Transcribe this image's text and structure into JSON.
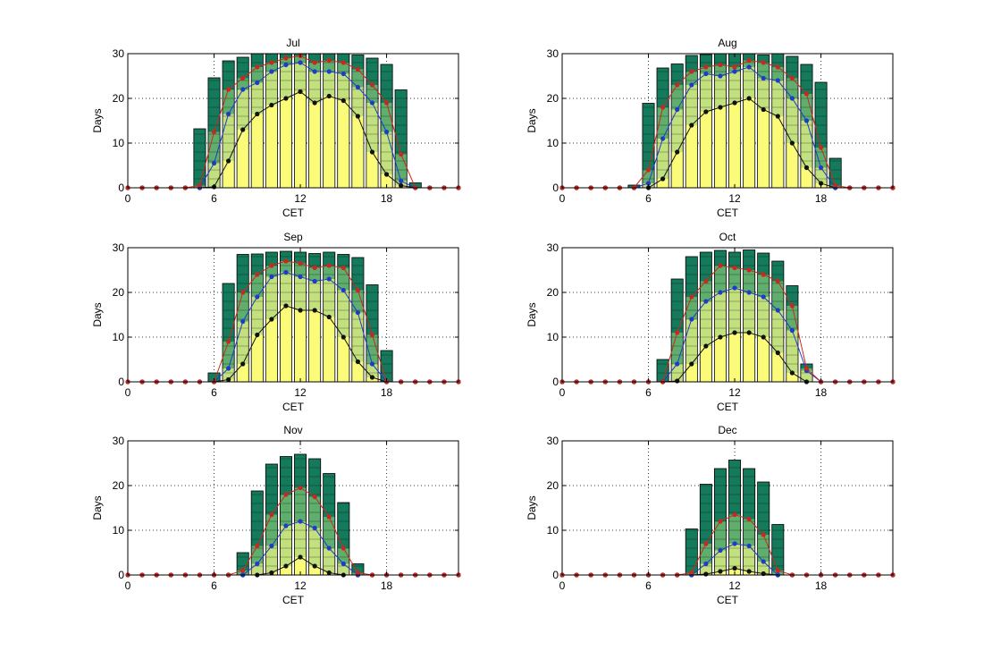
{
  "colors": {
    "bar_dark": "#157a5b",
    "bar_mid": "#5fae6e",
    "bar_light": "#c3e07e",
    "bar_yellow": "#fbfb7a",
    "line_black": "#111111",
    "line_blue": "#1f3cc8",
    "line_red": "#c8291f",
    "grid": "#333333"
  },
  "chart_data": [
    {
      "type": "bar",
      "title": "Jul",
      "xlabel": "CET",
      "ylabel": "Days",
      "xlim": [
        0,
        23
      ],
      "ylim": [
        0,
        30
      ],
      "xticks": [
        0,
        6,
        12,
        18
      ],
      "yticks": [
        0,
        10,
        20,
        30
      ],
      "grid": true,
      "x": [
        0,
        1,
        2,
        3,
        4,
        5,
        6,
        7,
        8,
        9,
        10,
        11,
        12,
        13,
        14,
        15,
        16,
        17,
        18,
        19,
        20,
        21,
        22,
        23
      ],
      "bars": [
        0,
        0,
        0,
        0,
        0,
        13.2,
        24.6,
        28.4,
        29.2,
        30,
        30,
        30,
        30,
        30,
        30,
        30,
        29.7,
        29.0,
        27.6,
        21.9,
        1.1,
        0,
        0,
        0
      ],
      "series": [
        {
          "values": [
            0,
            0,
            0,
            0,
            0,
            0,
            0.2,
            6,
            13,
            16.5,
            18.5,
            20,
            21.5,
            19,
            20.5,
            19.5,
            16,
            8,
            3,
            0.5,
            0,
            0,
            0,
            0
          ]
        },
        {
          "values": [
            0,
            0,
            0,
            0,
            0,
            0,
            5.5,
            16.5,
            22,
            23.5,
            26,
            27.5,
            28,
            26,
            26,
            25.5,
            22.5,
            19,
            12.5,
            1.5,
            0,
            0,
            0,
            0
          ]
        },
        {
          "values": [
            0,
            0,
            0,
            0,
            0,
            0.5,
            12.5,
            22,
            24.5,
            27,
            28,
            29,
            29.5,
            28,
            28.5,
            28,
            26.5,
            23,
            19,
            7.5,
            0,
            0,
            0,
            0
          ]
        }
      ]
    },
    {
      "type": "bar",
      "title": "Aug",
      "xlabel": "CET",
      "ylabel": "Days",
      "xlim": [
        0,
        23
      ],
      "ylim": [
        0,
        30
      ],
      "xticks": [
        0,
        6,
        12,
        18
      ],
      "yticks": [
        0,
        10,
        20,
        30
      ],
      "grid": true,
      "x": [
        0,
        1,
        2,
        3,
        4,
        5,
        6,
        7,
        8,
        9,
        10,
        11,
        12,
        13,
        14,
        15,
        16,
        17,
        18,
        19,
        20,
        21,
        22,
        23
      ],
      "bars": [
        0,
        0,
        0,
        0,
        0,
        0.6,
        18.9,
        26.8,
        27.7,
        29.6,
        29.8,
        30,
        30,
        30,
        29.7,
        30,
        29.4,
        27.6,
        23.6,
        6.6,
        0,
        0,
        0,
        0
      ],
      "series": [
        {
          "values": [
            0,
            0,
            0,
            0,
            0,
            0,
            0,
            2,
            8,
            14,
            17,
            18,
            19,
            20,
            17.5,
            16,
            10,
            4.5,
            1,
            0,
            0,
            0,
            0,
            0
          ]
        },
        {
          "values": [
            0,
            0,
            0,
            0,
            0,
            0,
            1,
            11,
            17.5,
            23,
            25.5,
            25,
            26,
            27,
            24.5,
            24,
            20,
            15,
            4.5,
            0,
            0,
            0,
            0,
            0
          ]
        },
        {
          "values": [
            0,
            0,
            0,
            0,
            0,
            0,
            4,
            18,
            23,
            26,
            27,
            27.5,
            27,
            28.5,
            28,
            27,
            24.5,
            21,
            9,
            0.5,
            0,
            0,
            0,
            0
          ]
        }
      ]
    },
    {
      "type": "bar",
      "title": "Sep",
      "xlabel": "CET",
      "ylabel": "Days",
      "xlim": [
        0,
        23
      ],
      "ylim": [
        0,
        30
      ],
      "xticks": [
        0,
        6,
        12,
        18
      ],
      "yticks": [
        0,
        10,
        20,
        30
      ],
      "grid": true,
      "x": [
        0,
        1,
        2,
        3,
        4,
        5,
        6,
        7,
        8,
        9,
        10,
        11,
        12,
        13,
        14,
        15,
        16,
        17,
        18,
        19,
        20,
        21,
        22,
        23
      ],
      "bars": [
        0,
        0,
        0,
        0,
        0,
        0,
        2,
        22,
        28.5,
        28.6,
        29,
        29.2,
        29,
        28.7,
        29,
        28.5,
        27.8,
        21.7,
        7,
        0,
        0,
        0,
        0,
        0
      ],
      "series": [
        {
          "values": [
            0,
            0,
            0,
            0,
            0,
            0,
            0,
            0.5,
            4,
            10.5,
            14,
            17,
            16,
            16,
            14.5,
            10,
            4.5,
            1,
            0,
            0,
            0,
            0,
            0,
            0
          ]
        },
        {
          "values": [
            0,
            0,
            0,
            0,
            0,
            0,
            0,
            3,
            13.5,
            19,
            23.5,
            24.5,
            23.5,
            22.5,
            23,
            20.5,
            15.5,
            4,
            0,
            0,
            0,
            0,
            0,
            0
          ]
        },
        {
          "values": [
            0,
            0,
            0,
            0,
            0,
            0,
            0,
            9,
            20,
            24,
            26,
            27,
            26.5,
            25.5,
            26,
            25.5,
            20.5,
            10.5,
            0,
            0,
            0,
            0,
            0,
            0
          ]
        }
      ]
    },
    {
      "type": "bar",
      "title": "Oct",
      "xlabel": "CET",
      "ylabel": "Days",
      "xlim": [
        0,
        23
      ],
      "ylim": [
        0,
        30
      ],
      "xticks": [
        0,
        6,
        12,
        18
      ],
      "yticks": [
        0,
        10,
        20,
        30
      ],
      "grid": true,
      "x": [
        0,
        1,
        2,
        3,
        4,
        5,
        6,
        7,
        8,
        9,
        10,
        11,
        12,
        13,
        14,
        15,
        16,
        17,
        18,
        19,
        20,
        21,
        22,
        23
      ],
      "bars": [
        0,
        0,
        0,
        0,
        0,
        0,
        0,
        5,
        23,
        28,
        29,
        29.4,
        29,
        29.5,
        28.8,
        27,
        21.5,
        4,
        0,
        0,
        0,
        0,
        0,
        0
      ],
      "series": [
        {
          "values": [
            0,
            0,
            0,
            0,
            0,
            0,
            0,
            0,
            0.2,
            4,
            8,
            10,
            11,
            11,
            10,
            6.5,
            2,
            0,
            0,
            0,
            0,
            0,
            0,
            0
          ]
        },
        {
          "values": [
            0,
            0,
            0,
            0,
            0,
            0,
            0,
            0,
            4,
            14,
            18,
            20,
            21,
            20,
            19,
            16,
            11.5,
            2.5,
            0,
            0,
            0,
            0,
            0,
            0
          ]
        },
        {
          "values": [
            0,
            0,
            0,
            0,
            0,
            0,
            0,
            0,
            11,
            19,
            22.5,
            26,
            25.5,
            25,
            24,
            22.5,
            17,
            3,
            0,
            0,
            0,
            0,
            0,
            0
          ]
        }
      ]
    },
    {
      "type": "bar",
      "title": "Nov",
      "xlabel": "CET",
      "ylabel": "Days",
      "xlim": [
        0,
        23
      ],
      "ylim": [
        0,
        30
      ],
      "xticks": [
        0,
        6,
        12,
        18
      ],
      "yticks": [
        0,
        10,
        20,
        30
      ],
      "grid": true,
      "x": [
        0,
        1,
        2,
        3,
        4,
        5,
        6,
        7,
        8,
        9,
        10,
        11,
        12,
        13,
        14,
        15,
        16,
        17,
        18,
        19,
        20,
        21,
        22,
        23
      ],
      "bars": [
        0,
        0,
        0,
        0,
        0,
        0,
        0,
        0,
        5,
        18.8,
        24.8,
        26.5,
        27,
        26,
        22.7,
        16.2,
        2.5,
        0,
        0,
        0,
        0,
        0,
        0,
        0
      ],
      "series": [
        {
          "values": [
            0,
            0,
            0,
            0,
            0,
            0,
            0,
            0,
            0,
            0,
            0.5,
            2,
            4,
            2,
            0.5,
            0,
            0,
            0,
            0,
            0,
            0,
            0,
            0,
            0
          ]
        },
        {
          "values": [
            0,
            0,
            0,
            0,
            0,
            0,
            0,
            0,
            0,
            2.5,
            6.5,
            11,
            12,
            10.5,
            6,
            2.5,
            0,
            0,
            0,
            0,
            0,
            0,
            0,
            0
          ]
        },
        {
          "values": [
            0,
            0,
            0,
            0,
            0,
            0,
            0,
            0,
            1,
            6.5,
            13.5,
            18,
            19.5,
            17.5,
            13,
            6,
            0.5,
            0,
            0,
            0,
            0,
            0,
            0,
            0
          ]
        }
      ]
    },
    {
      "type": "bar",
      "title": "Dec",
      "xlabel": "CET",
      "ylabel": "Days",
      "xlim": [
        0,
        23
      ],
      "ylim": [
        0,
        30
      ],
      "xticks": [
        0,
        6,
        12,
        18
      ],
      "yticks": [
        0,
        10,
        20,
        30
      ],
      "grid": true,
      "x": [
        0,
        1,
        2,
        3,
        4,
        5,
        6,
        7,
        8,
        9,
        10,
        11,
        12,
        13,
        14,
        15,
        16,
        17,
        18,
        19,
        20,
        21,
        22,
        23
      ],
      "bars": [
        0,
        0,
        0,
        0,
        0,
        0,
        0,
        0,
        0,
        10.3,
        20.3,
        23.8,
        25.7,
        23.8,
        20.8,
        11.3,
        0,
        0,
        0,
        0,
        0,
        0,
        0,
        0
      ],
      "series": [
        {
          "values": [
            0,
            0,
            0,
            0,
            0,
            0,
            0,
            0,
            0,
            0,
            0.2,
            0.8,
            1.5,
            0.8,
            0.3,
            0,
            0,
            0,
            0,
            0,
            0,
            0,
            0,
            0
          ]
        },
        {
          "values": [
            0,
            0,
            0,
            0,
            0,
            0,
            0,
            0,
            0,
            0,
            2.5,
            5.5,
            7,
            6.5,
            3,
            0,
            0,
            0,
            0,
            0,
            0,
            0,
            0,
            0
          ]
        },
        {
          "values": [
            0,
            0,
            0,
            0,
            0,
            0,
            0,
            0,
            0,
            0.5,
            7,
            12,
            13.5,
            12.5,
            9,
            1,
            0,
            0,
            0,
            0,
            0,
            0,
            0,
            0
          ]
        }
      ]
    }
  ]
}
